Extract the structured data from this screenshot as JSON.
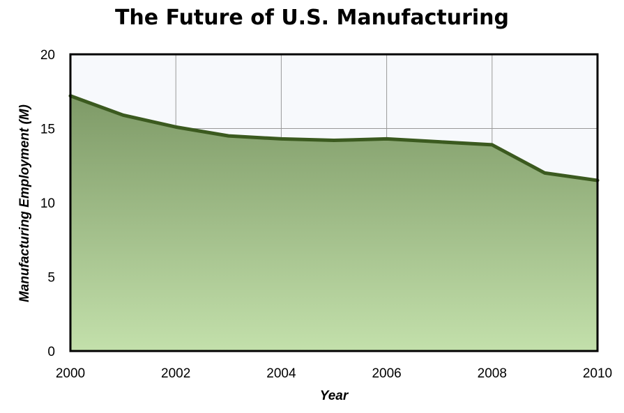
{
  "chart_data": {
    "type": "area",
    "title": "The Future of U.S. Manufacturing",
    "xlabel": "Year",
    "ylabel": "Manufacturing Employment (M)",
    "x": [
      2000,
      2001,
      2002,
      2003,
      2004,
      2005,
      2006,
      2007,
      2008,
      2009,
      2010
    ],
    "series": [
      {
        "values": [
          17.2,
          15.9,
          15.1,
          14.5,
          14.3,
          14.2,
          14.3,
          14.1,
          13.9,
          12.0,
          11.5
        ]
      }
    ],
    "xlim": [
      2000,
      2010
    ],
    "ylim": [
      0,
      20
    ],
    "xticks": [
      "2000",
      "2002",
      "2004",
      "2006",
      "2008",
      "2010"
    ],
    "yticks": [
      "0",
      "5",
      "10",
      "15",
      "20"
    ],
    "grid": true,
    "legend": "none",
    "colors": {
      "line": "#3b5a1f",
      "fill_top": "#7e9a67",
      "fill_bottom": "#c3e0ab",
      "plot_bg": "#f7f9fc",
      "grid": "#999999"
    }
  }
}
